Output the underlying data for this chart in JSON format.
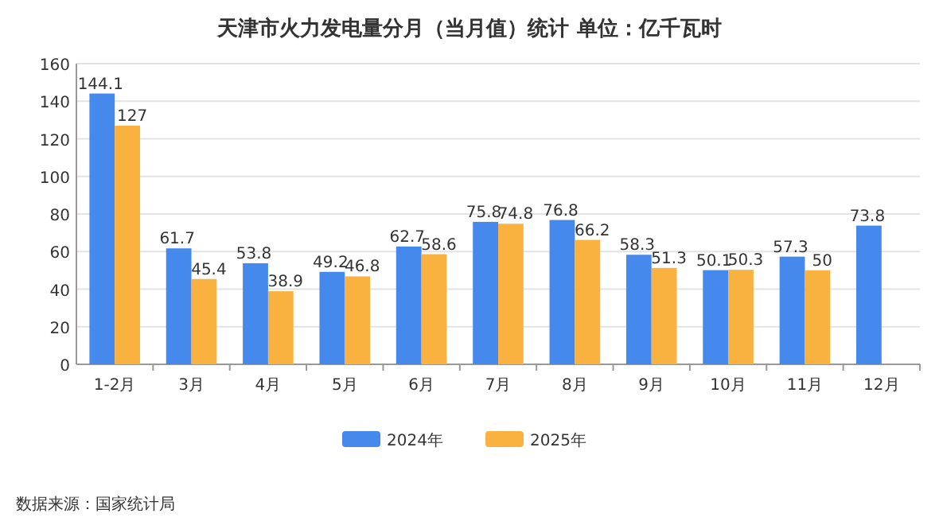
{
  "chart_data": {
    "type": "bar",
    "title": "天津市火力发电量分月（当月值）统计 单位：亿千瓦时",
    "categories": [
      "1-2月",
      "3月",
      "4月",
      "5月",
      "6月",
      "7月",
      "8月",
      "9月",
      "10月",
      "11月",
      "12月"
    ],
    "series": [
      {
        "name": "2024年",
        "color": "#4589ec",
        "values": [
          144.1,
          61.7,
          53.8,
          49.2,
          62.7,
          75.8,
          76.8,
          58.3,
          50.1,
          57.3,
          73.8
        ]
      },
      {
        "name": "2025年",
        "color": "#f9b13f",
        "values": [
          127,
          45.4,
          38.9,
          46.8,
          58.6,
          74.8,
          66.2,
          51.3,
          50.3,
          50,
          null
        ]
      }
    ],
    "ylim": [
      0,
      160
    ],
    "yticks": [
      0,
      20,
      40,
      60,
      80,
      100,
      120,
      140,
      160
    ],
    "grid": "y",
    "legend": "bottom",
    "data_labels": true,
    "annotations": [
      "数据来源：国家统计局"
    ]
  }
}
